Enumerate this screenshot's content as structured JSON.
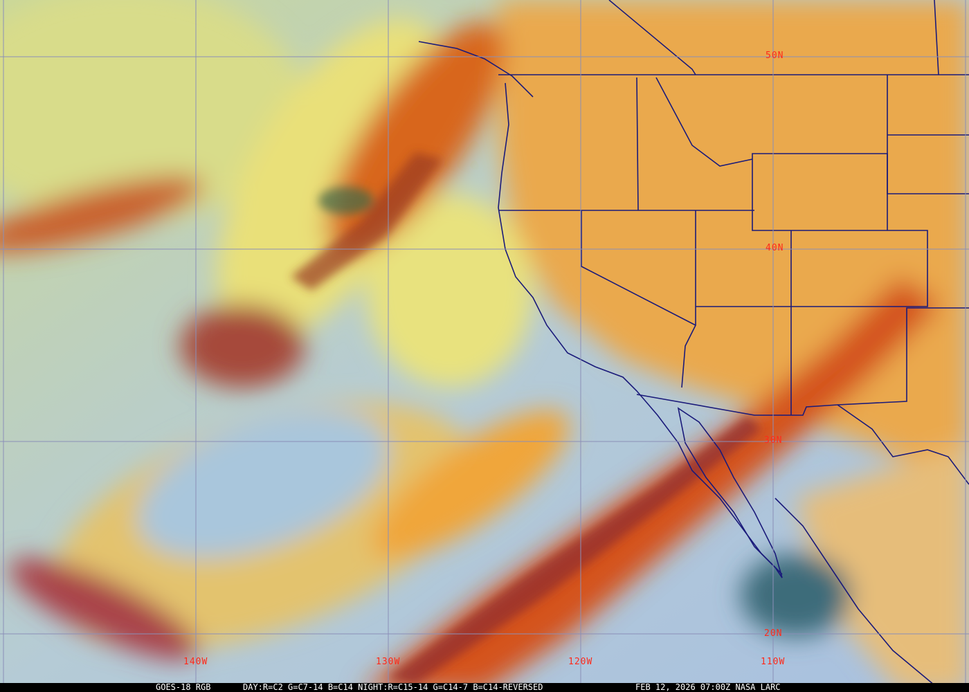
{
  "image": {
    "type": "satellite-rgb-composite",
    "colors": {
      "grid": "#8b8fb8",
      "grid_label": "#ff2a1a",
      "borders": "#1a1a7a",
      "caption_bg": "#000000",
      "caption_text": "#ffffff"
    }
  },
  "grid_labels": {
    "lat": [
      "50N",
      "40N",
      "30N",
      "20N"
    ],
    "lon": [
      "140W",
      "130W",
      "120W",
      "110W"
    ]
  },
  "caption": {
    "satellite": "GOES-18 RGB",
    "recipe": "DAY:R=C2 G=C7-14 B=C14 NIGHT:R=C15-14 G=C14-7 B=C14-REVERSED",
    "datetime": "FEB 12, 2026 07:00Z NASA LARC"
  }
}
